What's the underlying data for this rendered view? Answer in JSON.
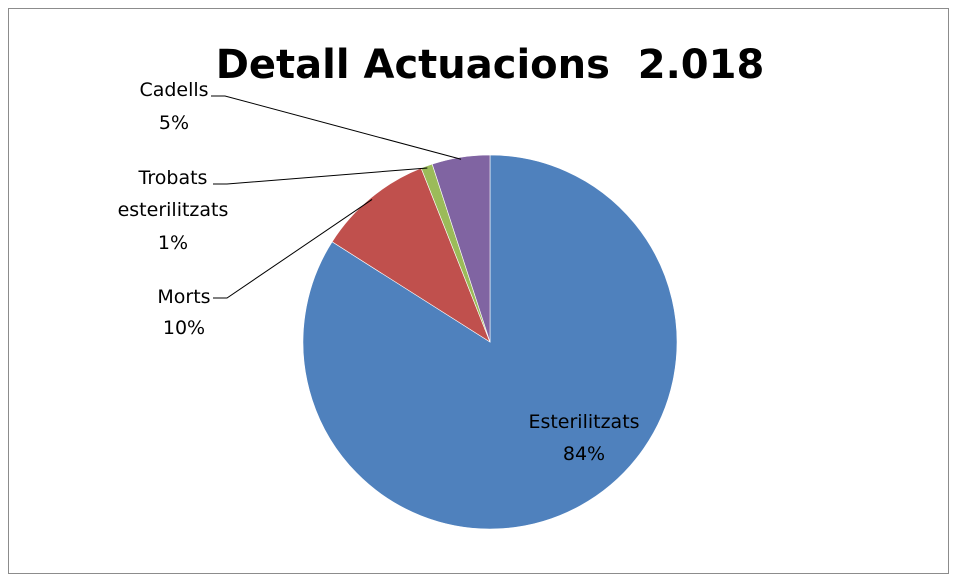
{
  "chart_data": {
    "type": "pie",
    "title": "Detall Actuacions  2.018",
    "slices": [
      {
        "label": "Esterilitzats",
        "percent_label": "84%",
        "value": 84,
        "color": "#4F81BD"
      },
      {
        "label": "Morts",
        "percent_label": "10%",
        "value": 10,
        "color": "#C0504D"
      },
      {
        "label": "Trobats esterilitzats",
        "percent_label": "1%",
        "value": 1,
        "color": "#9BBB59"
      },
      {
        "label": "Cadells",
        "percent_label": "5%",
        "value": 5,
        "color": "#8064A2"
      }
    ],
    "legend": "none",
    "data_labels": "category and percentage"
  }
}
